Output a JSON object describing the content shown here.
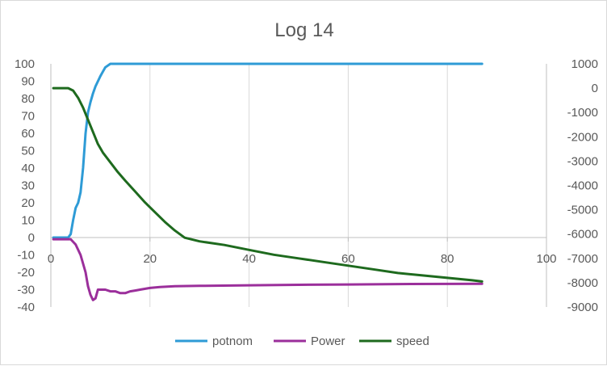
{
  "chart_data": {
    "type": "line",
    "title": "Log 14",
    "xlim": [
      0,
      100
    ],
    "x_ticks": [
      0,
      20,
      40,
      60,
      80,
      100
    ],
    "ylim_left": [
      -40,
      100
    ],
    "y_ticks_left": [
      -40,
      -30,
      -20,
      -10,
      0,
      10,
      20,
      30,
      40,
      50,
      60,
      70,
      80,
      90,
      100
    ],
    "ylim_right": [
      -9000,
      1000
    ],
    "y_ticks_right": [
      -9000,
      -8000,
      -7000,
      -6000,
      -5000,
      -4000,
      -3000,
      -2000,
      -1000,
      0,
      1000
    ],
    "grid": "vertical",
    "legend_position": "bottom",
    "series": [
      {
        "name": "potnom",
        "color": "#2e9bd6",
        "axis": "left",
        "points": [
          [
            0.5,
            0
          ],
          [
            2,
            0
          ],
          [
            3.5,
            0
          ],
          [
            4,
            2
          ],
          [
            4.5,
            10
          ],
          [
            5,
            17
          ],
          [
            5.5,
            20
          ],
          [
            6,
            26
          ],
          [
            6.5,
            40
          ],
          [
            7,
            60
          ],
          [
            7.5,
            72
          ],
          [
            8,
            78
          ],
          [
            8.5,
            83
          ],
          [
            9,
            87
          ],
          [
            10,
            93
          ],
          [
            11,
            98
          ],
          [
            12,
            100
          ],
          [
            20,
            100
          ],
          [
            40,
            100
          ],
          [
            60,
            100
          ],
          [
            80,
            100
          ],
          [
            87,
            100
          ]
        ]
      },
      {
        "name": "Power",
        "color": "#9b2f9b",
        "axis": "left",
        "points": [
          [
            0.5,
            -1
          ],
          [
            2,
            -1
          ],
          [
            3,
            -1
          ],
          [
            4,
            -1
          ],
          [
            5,
            -4
          ],
          [
            6,
            -10
          ],
          [
            7,
            -20
          ],
          [
            7.5,
            -28
          ],
          [
            8,
            -33
          ],
          [
            8.5,
            -36
          ],
          [
            9,
            -35
          ],
          [
            9.5,
            -30
          ],
          [
            10,
            -30
          ],
          [
            11,
            -30
          ],
          [
            12,
            -31
          ],
          [
            13,
            -31
          ],
          [
            14,
            -32
          ],
          [
            15,
            -32
          ],
          [
            16,
            -31
          ],
          [
            17,
            -30.5
          ],
          [
            18,
            -30
          ],
          [
            20,
            -29
          ],
          [
            22,
            -28.5
          ],
          [
            25,
            -28
          ],
          [
            30,
            -27.8
          ],
          [
            40,
            -27.5
          ],
          [
            50,
            -27.2
          ],
          [
            60,
            -27
          ],
          [
            70,
            -26.8
          ],
          [
            80,
            -26.7
          ],
          [
            87,
            -26.6
          ]
        ]
      },
      {
        "name": "speed",
        "color": "#1e6a1e",
        "axis": "right",
        "points": [
          [
            0.5,
            0
          ],
          [
            2,
            0
          ],
          [
            3.5,
            0
          ],
          [
            4.5,
            -100
          ],
          [
            5.5,
            -400
          ],
          [
            6.5,
            -800
          ],
          [
            7.5,
            -1300
          ],
          [
            8.5,
            -1800
          ],
          [
            9.5,
            -2300
          ],
          [
            10.5,
            -2650
          ],
          [
            12,
            -3050
          ],
          [
            13.5,
            -3450
          ],
          [
            15,
            -3800
          ],
          [
            17,
            -4250
          ],
          [
            19,
            -4700
          ],
          [
            21,
            -5100
          ],
          [
            23,
            -5500
          ],
          [
            25,
            -5850
          ],
          [
            27,
            -6150
          ],
          [
            30,
            -6300
          ],
          [
            35,
            -6450
          ],
          [
            40,
            -6650
          ],
          [
            45,
            -6850
          ],
          [
            50,
            -7000
          ],
          [
            55,
            -7150
          ],
          [
            60,
            -7300
          ],
          [
            65,
            -7450
          ],
          [
            70,
            -7600
          ],
          [
            75,
            -7700
          ],
          [
            80,
            -7800
          ],
          [
            85,
            -7900
          ],
          [
            87,
            -7950
          ]
        ]
      }
    ]
  }
}
